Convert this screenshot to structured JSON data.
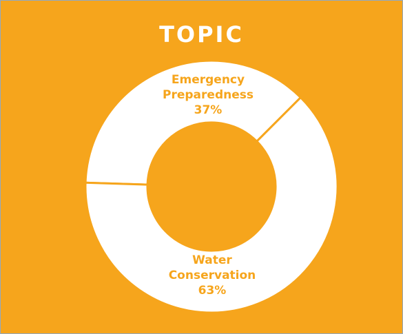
{
  "chart_data": {
    "type": "donut",
    "title": "TOPIC",
    "categories": [
      "Emergency Preparedness",
      "Water Conservation"
    ],
    "values": [
      37,
      63
    ],
    "value_labels": [
      "37%",
      "63%"
    ],
    "colors": [
      "#ffffff",
      "#ffffff"
    ]
  }
}
